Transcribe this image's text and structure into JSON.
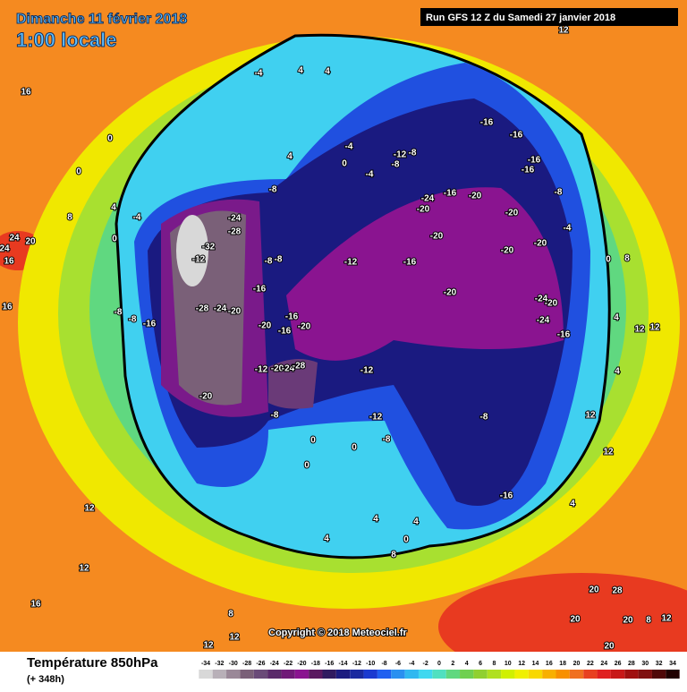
{
  "header": {
    "date": "Dimanche 11 février 2018",
    "time": "1:00 locale",
    "run": "Run GFS 12 Z du Samedi 27 janvier 2018"
  },
  "copyright": "Copyright © 2018 Meteociel.fr",
  "legend": {
    "title": "Température 850hPa",
    "subtitle": "(+ 348h)",
    "ticks": [
      -34,
      -32,
      -30,
      -28,
      -26,
      -24,
      -22,
      -20,
      -18,
      -16,
      -14,
      -12,
      -10,
      -8,
      -6,
      -4,
      -2,
      0,
      2,
      4,
      6,
      8,
      10,
      12,
      14,
      16,
      18,
      20,
      22,
      24,
      26,
      28,
      30,
      32,
      34
    ],
    "colors": [
      "#d8d8d8",
      "#b8b0b8",
      "#9a8898",
      "#7a6078",
      "#6a4a78",
      "#5a2a6a",
      "#701a78",
      "#8a1490",
      "#5a1860",
      "#301a60",
      "#1c1c80",
      "#1a2aa0",
      "#1a3ad0",
      "#2060f0",
      "#2a90f0",
      "#30b8f0",
      "#40d8f0",
      "#50e0c0",
      "#60d880",
      "#70d050",
      "#90d030",
      "#b0e020",
      "#d0f000",
      "#f0f000",
      "#f8d800",
      "#f8b000",
      "#f89000",
      "#f07020",
      "#e84020",
      "#e02020",
      "#c81818",
      "#a01010",
      "#801010",
      "#500808",
      "#200000"
    ]
  },
  "map_labels": [
    -32,
    -12,
    -24,
    -28,
    -28,
    -24,
    -20,
    -20,
    -16,
    -16,
    -8,
    -8,
    -8,
    -8,
    -20,
    -16,
    -16,
    -20,
    -12,
    -20,
    -24,
    -28,
    -8,
    -12,
    -12,
    -16,
    -20,
    -20,
    -20,
    -24,
    -16,
    -20,
    -20,
    -20,
    -20,
    -24,
    -20,
    -24,
    -16,
    -16,
    -16,
    -16,
    -16,
    -8,
    -4,
    -8,
    -16,
    -8,
    -12,
    -12,
    -8,
    -8,
    -4,
    -4,
    0,
    -8,
    0,
    0,
    0,
    4,
    -4,
    8,
    4,
    4,
    -4,
    4,
    24,
    20,
    24,
    16,
    16,
    16,
    12,
    12,
    16,
    12,
    0,
    8,
    4,
    12,
    12,
    4,
    12,
    12,
    4,
    20,
    28,
    20,
    8,
    12,
    20,
    20,
    8,
    12,
    12,
    4,
    4,
    8,
    4,
    0,
    0,
    0,
    0
  ]
}
